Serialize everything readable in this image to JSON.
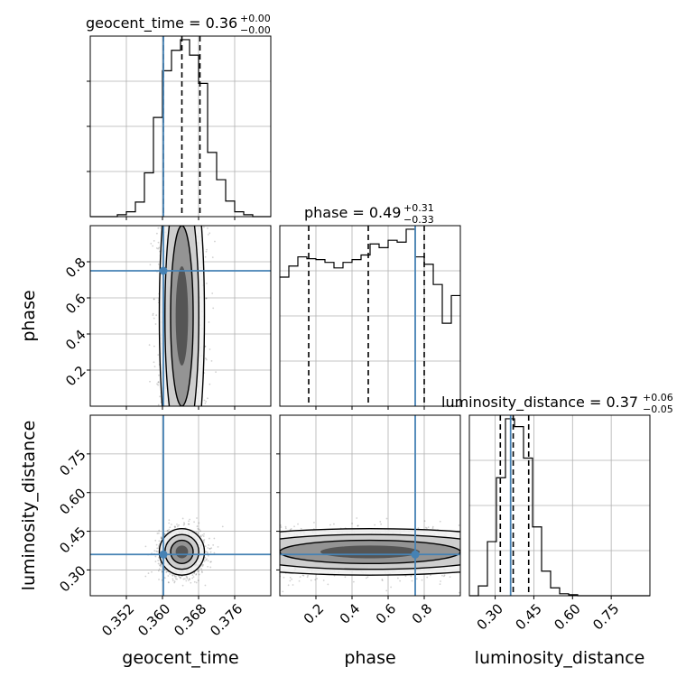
{
  "chart_data": {
    "type": "corner",
    "parameters": [
      {
        "name": "geocent_time",
        "axis_label": "geocent_time",
        "title_prefix": "geocent_time = ",
        "median": "0.36",
        "err_plus": "+0.00",
        "err_minus": "−0.00",
        "injection": 0.3602,
        "quantiles": [
          0.3602,
          0.3643,
          0.3683
        ],
        "range": [
          0.344,
          0.384
        ],
        "ticks": [
          0.352,
          0.36,
          0.368,
          0.376
        ],
        "tick_labels": [
          "0.352",
          "0.360",
          "0.368",
          "0.376"
        ],
        "hist_bins": [
          0.344,
          0.346,
          0.348,
          0.35,
          0.352,
          0.354,
          0.356,
          0.358,
          0.36,
          0.362,
          0.364,
          0.366,
          0.368,
          0.37,
          0.372,
          0.374,
          0.376,
          0.378,
          0.38,
          0.382,
          0.384
        ],
        "hist_counts": [
          0,
          0,
          0,
          2,
          5,
          15,
          45,
          102,
          150,
          171,
          182,
          166,
          137,
          66,
          38,
          16,
          5,
          2,
          0,
          0
        ]
      },
      {
        "name": "phase",
        "axis_label": "phase",
        "title_prefix": "phase = ",
        "median": "0.49",
        "err_plus": "+0.31",
        "err_minus": "−0.33",
        "injection": 0.75,
        "quantiles": [
          0.16,
          0.49,
          0.8
        ],
        "range": [
          0.0,
          1.0
        ],
        "ticks": [
          0.2,
          0.4,
          0.6,
          0.8
        ],
        "tick_labels": [
          "0.2",
          "0.4",
          "0.6",
          "0.8"
        ],
        "hist_bins": [
          0.0,
          0.05,
          0.1,
          0.15,
          0.2,
          0.25,
          0.3,
          0.35,
          0.4,
          0.45,
          0.5,
          0.55,
          0.6,
          0.65,
          0.7,
          0.75,
          0.8,
          0.85,
          0.9,
          0.95,
          1.0
        ],
        "hist_counts": [
          140,
          152,
          162,
          160,
          159,
          156,
          150,
          156,
          159,
          164,
          176,
          172,
          180,
          178,
          192,
          162,
          154,
          132,
          90,
          120
        ]
      },
      {
        "name": "luminosity_distance",
        "axis_label": "luminosity_distance",
        "title_prefix": "luminosity_distance = ",
        "median": "0.37",
        "err_plus": "+0.06",
        "err_minus": "−0.05",
        "injection": 0.36,
        "quantiles": [
          0.32,
          0.37,
          0.43
        ],
        "range": [
          0.2,
          0.9
        ],
        "ticks": [
          0.3,
          0.45,
          0.6,
          0.75
        ],
        "tick_labels": [
          "0.30",
          "0.45",
          "0.60",
          "0.75"
        ],
        "hist_bins": [
          0.2,
          0.235,
          0.27,
          0.305,
          0.34,
          0.375,
          0.41,
          0.445,
          0.48,
          0.515,
          0.55,
          0.585,
          0.62,
          0.655,
          0.69,
          0.725,
          0.76,
          0.795,
          0.83,
          0.865,
          0.9
        ],
        "hist_counts": [
          0,
          10,
          55,
          120,
          180,
          172,
          140,
          70,
          25,
          8,
          2,
          1,
          0,
          0,
          0,
          0,
          0,
          0,
          0,
          0
        ]
      }
    ],
    "pairs": [
      {
        "x": "geocent_time",
        "y": "phase",
        "x_range": [
          0.344,
          0.384
        ],
        "y_range": [
          0.0,
          1.0
        ],
        "y_ticks": [
          0.2,
          0.4,
          0.6,
          0.8
        ],
        "y_tick_labels": [
          "0.2",
          "0.4",
          "0.6",
          "0.8"
        ],
        "center": [
          0.3643,
          0.5
        ],
        "spread": [
          0.0025,
          0.3
        ]
      },
      {
        "x": "geocent_time",
        "y": "luminosity_distance",
        "x_range": [
          0.344,
          0.384
        ],
        "y_range": [
          0.2,
          0.9
        ],
        "y_ticks": [
          0.3,
          0.45,
          0.6,
          0.75
        ],
        "y_tick_labels": [
          "0.30",
          "0.45",
          "0.60",
          "0.75"
        ],
        "center": [
          0.3643,
          0.37
        ],
        "spread": [
          0.0025,
          0.045
        ]
      },
      {
        "x": "phase",
        "y": "luminosity_distance",
        "x_range": [
          0.0,
          1.0
        ],
        "y_range": [
          0.2,
          0.9
        ],
        "center": [
          0.5,
          0.37
        ],
        "spread": [
          0.3,
          0.045
        ]
      }
    ],
    "injection_color": "#4682b4",
    "grid": true
  }
}
